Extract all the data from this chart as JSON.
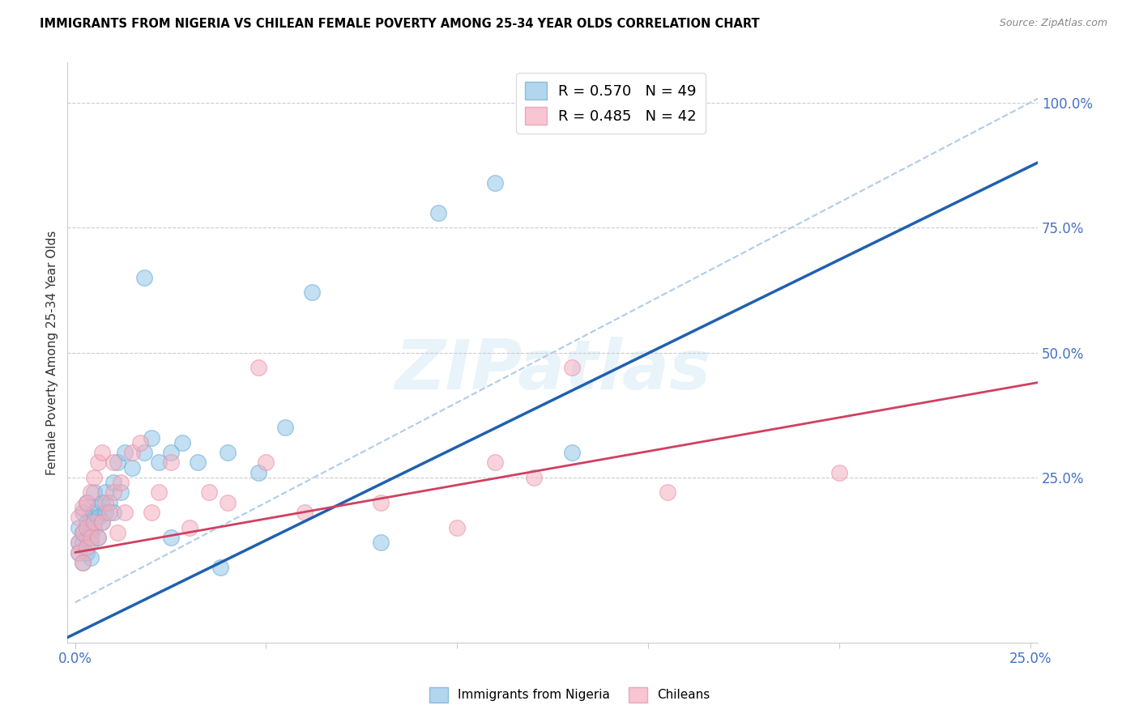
{
  "title": "IMMIGRANTS FROM NIGERIA VS CHILEAN FEMALE POVERTY AMONG 25-34 YEAR OLDS CORRELATION CHART",
  "source_text": "Source: ZipAtlas.com",
  "ylabel": "Female Poverty Among 25-34 Year Olds",
  "xlim": [
    -0.002,
    0.252
  ],
  "ylim": [
    -0.08,
    1.08
  ],
  "xticks": [
    0.0,
    0.05,
    0.1,
    0.15,
    0.2,
    0.25
  ],
  "xtick_labels": [
    "0.0%",
    "",
    "",
    "",
    "",
    "25.0%"
  ],
  "yticks_right": [
    0.25,
    0.5,
    0.75,
    1.0
  ],
  "ytick_labels_right": [
    "25.0%",
    "50.0%",
    "75.0%",
    "100.0%"
  ],
  "blue_color": "#92c5e8",
  "pink_color": "#f4afc0",
  "blue_edge_color": "#6aaad4",
  "pink_edge_color": "#e890a8",
  "blue_line_color": "#2060b0",
  "pink_line_color": "#d04060",
  "ref_line_color": "#b0cce8",
  "watermark": "ZIPatlas",
  "nigeria_x": [
    0.001,
    0.001,
    0.001,
    0.002,
    0.002,
    0.002,
    0.002,
    0.003,
    0.003,
    0.003,
    0.003,
    0.004,
    0.004,
    0.004,
    0.004,
    0.005,
    0.005,
    0.005,
    0.006,
    0.006,
    0.006,
    0.007,
    0.007,
    0.008,
    0.008,
    0.009,
    0.01,
    0.01,
    0.011,
    0.012,
    0.013,
    0.015,
    0.018,
    0.02,
    0.022,
    0.025,
    0.028,
    0.032,
    0.04,
    0.048,
    0.055,
    0.062,
    0.08,
    0.095,
    0.11,
    0.13,
    0.025,
    0.038,
    0.018
  ],
  "nigeria_y": [
    0.12,
    0.1,
    0.15,
    0.08,
    0.14,
    0.18,
    0.12,
    0.1,
    0.16,
    0.13,
    0.2,
    0.09,
    0.17,
    0.14,
    0.12,
    0.15,
    0.18,
    0.22,
    0.13,
    0.19,
    0.17,
    0.16,
    0.2,
    0.18,
    0.22,
    0.2,
    0.24,
    0.18,
    0.28,
    0.22,
    0.3,
    0.27,
    0.3,
    0.33,
    0.28,
    0.3,
    0.32,
    0.28,
    0.3,
    0.26,
    0.35,
    0.62,
    0.12,
    0.78,
    0.84,
    0.3,
    0.13,
    0.07,
    0.65
  ],
  "chilean_x": [
    0.001,
    0.001,
    0.001,
    0.002,
    0.002,
    0.002,
    0.003,
    0.003,
    0.003,
    0.004,
    0.004,
    0.005,
    0.005,
    0.006,
    0.006,
    0.007,
    0.007,
    0.008,
    0.009,
    0.01,
    0.01,
    0.011,
    0.012,
    0.013,
    0.015,
    0.017,
    0.02,
    0.022,
    0.025,
    0.03,
    0.035,
    0.04,
    0.05,
    0.06,
    0.08,
    0.1,
    0.12,
    0.13,
    0.155,
    0.2,
    0.11,
    0.048
  ],
  "chilean_y": [
    0.12,
    0.1,
    0.17,
    0.08,
    0.14,
    0.19,
    0.11,
    0.15,
    0.2,
    0.13,
    0.22,
    0.16,
    0.25,
    0.13,
    0.28,
    0.16,
    0.3,
    0.2,
    0.18,
    0.22,
    0.28,
    0.14,
    0.24,
    0.18,
    0.3,
    0.32,
    0.18,
    0.22,
    0.28,
    0.15,
    0.22,
    0.2,
    0.28,
    0.18,
    0.2,
    0.15,
    0.25,
    0.47,
    0.22,
    0.26,
    0.28,
    0.47
  ],
  "nigeria_trend_x": [
    -0.002,
    0.252
  ],
  "nigeria_trend_y": [
    -0.07,
    0.88
  ],
  "chilean_trend_x": [
    0.0,
    0.252
  ],
  "chilean_trend_y": [
    0.1,
    0.44
  ],
  "ref_line_x": [
    0.0,
    0.252
  ],
  "ref_line_y": [
    0.0,
    1.008
  ]
}
